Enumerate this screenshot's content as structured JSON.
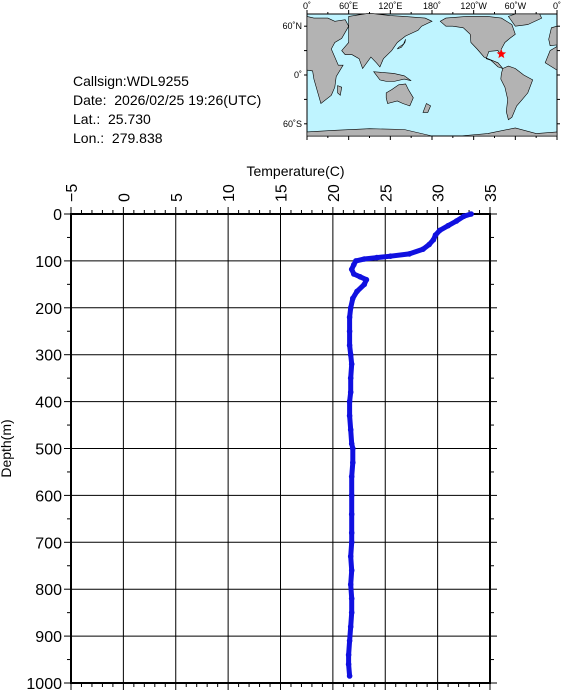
{
  "info": {
    "callsign": "Callsign:WDL9255",
    "date": "Date:  2026/02/25 19:26(UTC)",
    "lat": "Lat.:  25.730",
    "lon": "Lon.:  279.838"
  },
  "map": {
    "lon_labels": [
      "0˚",
      "60˚E",
      "120˚E",
      "180˚",
      "120˚W",
      "60˚W",
      "0˚"
    ],
    "lat_labels": [
      "60˚N",
      "0˚",
      "60˚S"
    ],
    "ocean_color": "#bff4ff",
    "land_color": "#b3b3b3",
    "marker_color": "#ff0000",
    "marker": {
      "lat": 25.73,
      "lon": 279.838
    }
  },
  "chart_data": {
    "type": "line",
    "title": "",
    "xlabel": "Temperature(C)",
    "ylabel": "Depth(m)",
    "xlim": [
      -5,
      35
    ],
    "ylim": [
      0,
      1000
    ],
    "x_ticks": [
      "−5",
      "0",
      "5",
      "10",
      "15",
      "20",
      "25",
      "30",
      "35"
    ],
    "y_ticks": [
      "0",
      "100",
      "200",
      "300",
      "400",
      "500",
      "600",
      "700",
      "800",
      "900",
      "1000"
    ],
    "series_color": "#1010e0",
    "series": [
      {
        "points": [
          [
            33.2,
            0
          ],
          [
            32.5,
            5
          ],
          [
            31.8,
            15
          ],
          [
            31.0,
            25
          ],
          [
            30.2,
            35
          ],
          [
            29.8,
            45
          ],
          [
            29.6,
            55
          ],
          [
            29.2,
            65
          ],
          [
            28.6,
            75
          ],
          [
            27.3,
            85
          ],
          [
            25.5,
            90
          ],
          [
            24.2,
            93
          ],
          [
            23.0,
            96
          ],
          [
            22.2,
            100
          ],
          [
            22.0,
            108
          ],
          [
            21.8,
            118
          ],
          [
            22.0,
            128
          ],
          [
            22.6,
            134
          ],
          [
            23.2,
            140
          ],
          [
            23.0,
            150
          ],
          [
            22.3,
            165
          ],
          [
            21.9,
            180
          ],
          [
            21.7,
            200
          ],
          [
            21.6,
            220
          ],
          [
            21.6,
            250
          ],
          [
            21.6,
            280
          ],
          [
            21.7,
            300
          ],
          [
            21.8,
            320
          ],
          [
            21.7,
            350
          ],
          [
            21.7,
            380
          ],
          [
            21.6,
            400
          ],
          [
            21.6,
            430
          ],
          [
            21.7,
            460
          ],
          [
            21.8,
            490
          ],
          [
            21.9,
            500
          ],
          [
            21.9,
            530
          ],
          [
            21.8,
            560
          ],
          [
            21.8,
            600
          ],
          [
            21.8,
            640
          ],
          [
            21.8,
            680
          ],
          [
            21.8,
            700
          ],
          [
            21.7,
            730
          ],
          [
            21.8,
            760
          ],
          [
            21.7,
            790
          ],
          [
            21.8,
            820
          ],
          [
            21.8,
            850
          ],
          [
            21.7,
            880
          ],
          [
            21.6,
            910
          ],
          [
            21.5,
            940
          ],
          [
            21.5,
            960
          ],
          [
            21.6,
            985
          ]
        ]
      }
    ]
  }
}
